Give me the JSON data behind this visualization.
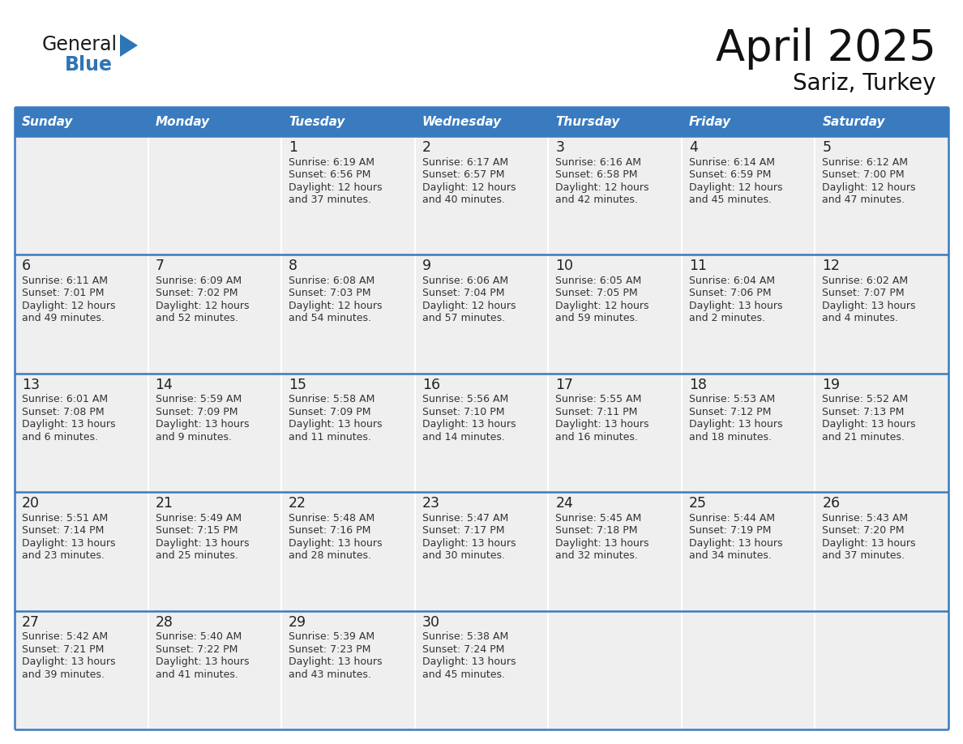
{
  "title": "April 2025",
  "subtitle": "Sariz, Turkey",
  "days_of_week": [
    "Sunday",
    "Monday",
    "Tuesday",
    "Wednesday",
    "Thursday",
    "Friday",
    "Saturday"
  ],
  "header_bg": "#3A7BBF",
  "header_text_color": "#FFFFFF",
  "cell_bg": "#EFEFEF",
  "cell_bg_empty_row1": "#F5F5F5",
  "day_num_color": "#222222",
  "info_color": "#333333",
  "line_color": "#3A7BBF",
  "border_color": "#3A7BBF",
  "logo_general_color": "#1A1A1A",
  "logo_blue_color": "#2E75B6",
  "calendar_data": [
    [
      {
        "day": null,
        "info": ""
      },
      {
        "day": null,
        "info": ""
      },
      {
        "day": 1,
        "info": "Sunrise: 6:19 AM\nSunset: 6:56 PM\nDaylight: 12 hours\nand 37 minutes."
      },
      {
        "day": 2,
        "info": "Sunrise: 6:17 AM\nSunset: 6:57 PM\nDaylight: 12 hours\nand 40 minutes."
      },
      {
        "day": 3,
        "info": "Sunrise: 6:16 AM\nSunset: 6:58 PM\nDaylight: 12 hours\nand 42 minutes."
      },
      {
        "day": 4,
        "info": "Sunrise: 6:14 AM\nSunset: 6:59 PM\nDaylight: 12 hours\nand 45 minutes."
      },
      {
        "day": 5,
        "info": "Sunrise: 6:12 AM\nSunset: 7:00 PM\nDaylight: 12 hours\nand 47 minutes."
      }
    ],
    [
      {
        "day": 6,
        "info": "Sunrise: 6:11 AM\nSunset: 7:01 PM\nDaylight: 12 hours\nand 49 minutes."
      },
      {
        "day": 7,
        "info": "Sunrise: 6:09 AM\nSunset: 7:02 PM\nDaylight: 12 hours\nand 52 minutes."
      },
      {
        "day": 8,
        "info": "Sunrise: 6:08 AM\nSunset: 7:03 PM\nDaylight: 12 hours\nand 54 minutes."
      },
      {
        "day": 9,
        "info": "Sunrise: 6:06 AM\nSunset: 7:04 PM\nDaylight: 12 hours\nand 57 minutes."
      },
      {
        "day": 10,
        "info": "Sunrise: 6:05 AM\nSunset: 7:05 PM\nDaylight: 12 hours\nand 59 minutes."
      },
      {
        "day": 11,
        "info": "Sunrise: 6:04 AM\nSunset: 7:06 PM\nDaylight: 13 hours\nand 2 minutes."
      },
      {
        "day": 12,
        "info": "Sunrise: 6:02 AM\nSunset: 7:07 PM\nDaylight: 13 hours\nand 4 minutes."
      }
    ],
    [
      {
        "day": 13,
        "info": "Sunrise: 6:01 AM\nSunset: 7:08 PM\nDaylight: 13 hours\nand 6 minutes."
      },
      {
        "day": 14,
        "info": "Sunrise: 5:59 AM\nSunset: 7:09 PM\nDaylight: 13 hours\nand 9 minutes."
      },
      {
        "day": 15,
        "info": "Sunrise: 5:58 AM\nSunset: 7:09 PM\nDaylight: 13 hours\nand 11 minutes."
      },
      {
        "day": 16,
        "info": "Sunrise: 5:56 AM\nSunset: 7:10 PM\nDaylight: 13 hours\nand 14 minutes."
      },
      {
        "day": 17,
        "info": "Sunrise: 5:55 AM\nSunset: 7:11 PM\nDaylight: 13 hours\nand 16 minutes."
      },
      {
        "day": 18,
        "info": "Sunrise: 5:53 AM\nSunset: 7:12 PM\nDaylight: 13 hours\nand 18 minutes."
      },
      {
        "day": 19,
        "info": "Sunrise: 5:52 AM\nSunset: 7:13 PM\nDaylight: 13 hours\nand 21 minutes."
      }
    ],
    [
      {
        "day": 20,
        "info": "Sunrise: 5:51 AM\nSunset: 7:14 PM\nDaylight: 13 hours\nand 23 minutes."
      },
      {
        "day": 21,
        "info": "Sunrise: 5:49 AM\nSunset: 7:15 PM\nDaylight: 13 hours\nand 25 minutes."
      },
      {
        "day": 22,
        "info": "Sunrise: 5:48 AM\nSunset: 7:16 PM\nDaylight: 13 hours\nand 28 minutes."
      },
      {
        "day": 23,
        "info": "Sunrise: 5:47 AM\nSunset: 7:17 PM\nDaylight: 13 hours\nand 30 minutes."
      },
      {
        "day": 24,
        "info": "Sunrise: 5:45 AM\nSunset: 7:18 PM\nDaylight: 13 hours\nand 32 minutes."
      },
      {
        "day": 25,
        "info": "Sunrise: 5:44 AM\nSunset: 7:19 PM\nDaylight: 13 hours\nand 34 minutes."
      },
      {
        "day": 26,
        "info": "Sunrise: 5:43 AM\nSunset: 7:20 PM\nDaylight: 13 hours\nand 37 minutes."
      }
    ],
    [
      {
        "day": 27,
        "info": "Sunrise: 5:42 AM\nSunset: 7:21 PM\nDaylight: 13 hours\nand 39 minutes."
      },
      {
        "day": 28,
        "info": "Sunrise: 5:40 AM\nSunset: 7:22 PM\nDaylight: 13 hours\nand 41 minutes."
      },
      {
        "day": 29,
        "info": "Sunrise: 5:39 AM\nSunset: 7:23 PM\nDaylight: 13 hours\nand 43 minutes."
      },
      {
        "day": 30,
        "info": "Sunrise: 5:38 AM\nSunset: 7:24 PM\nDaylight: 13 hours\nand 45 minutes."
      },
      {
        "day": null,
        "info": ""
      },
      {
        "day": null,
        "info": ""
      },
      {
        "day": null,
        "info": ""
      }
    ]
  ]
}
